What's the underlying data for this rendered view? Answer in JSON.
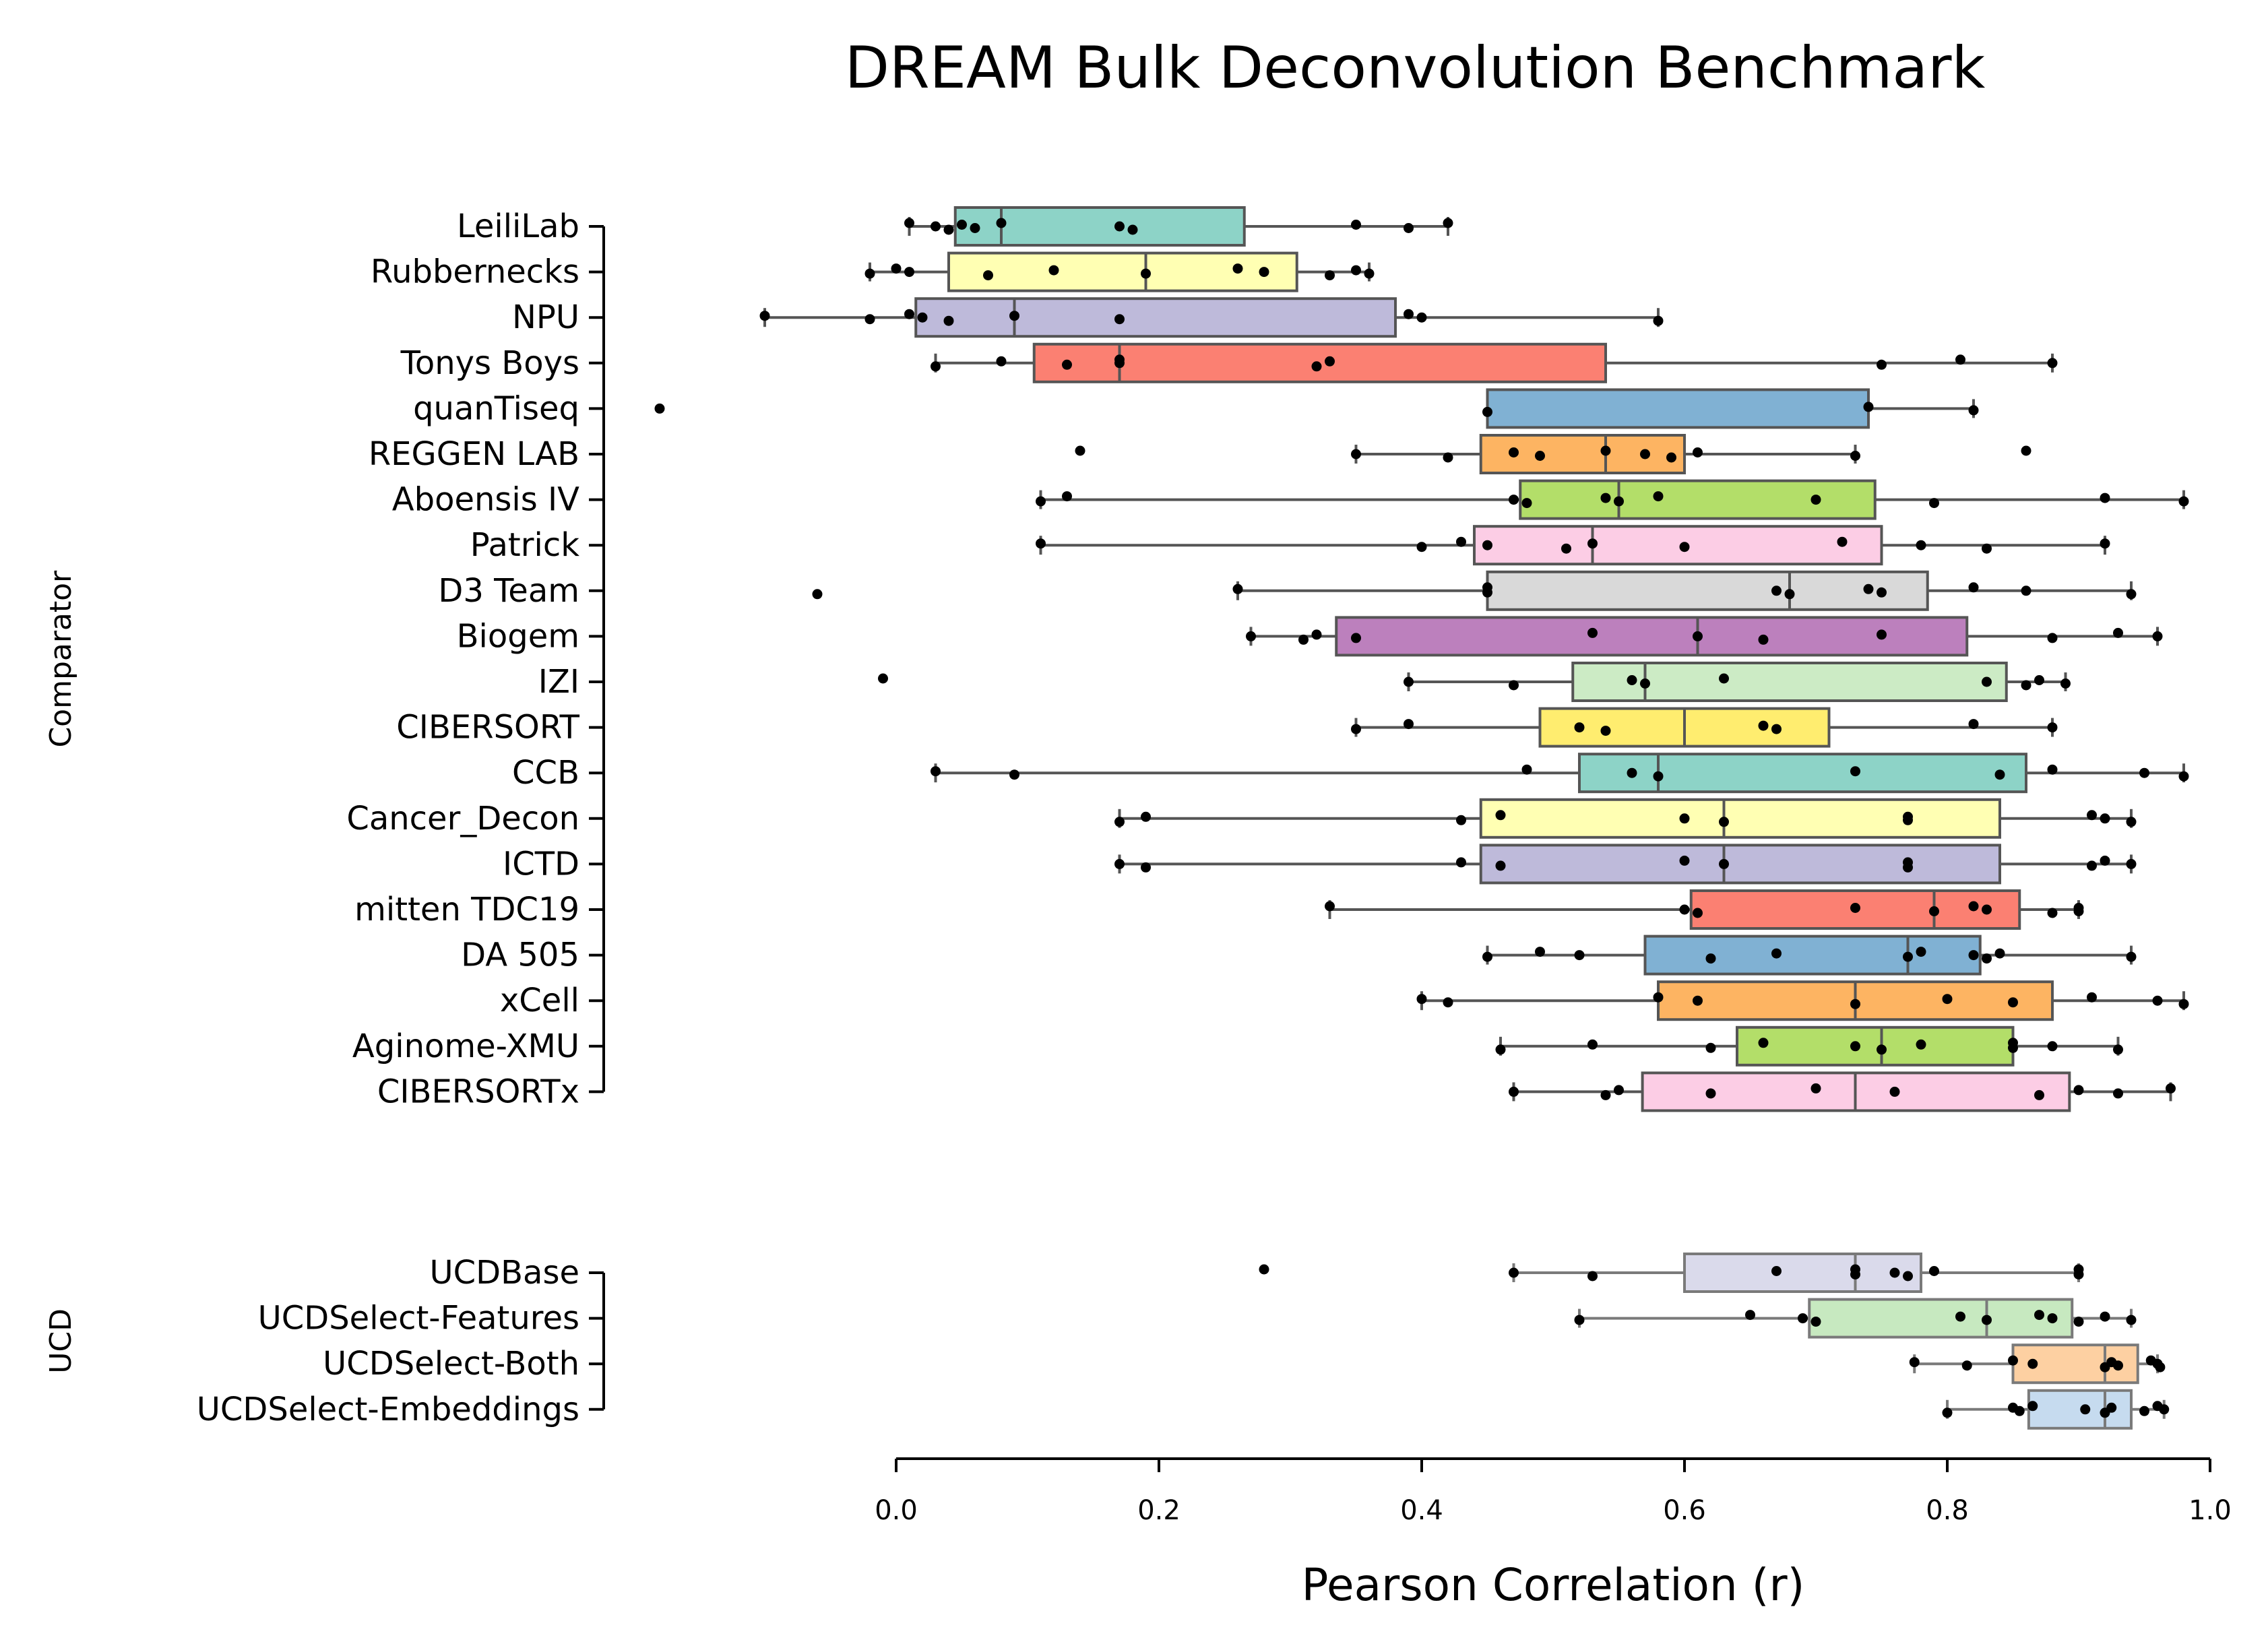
{
  "chart_data": {
    "type": "box",
    "title": "DREAM Bulk Deconvolution Benchmark",
    "xlabel": "Pearson Correlation (r)",
    "xlim": [
      0.0,
      1.0
    ],
    "xticks": [
      "0.0",
      "0.2",
      "0.4",
      "0.6",
      "0.8",
      "1.0"
    ],
    "grid": false,
    "groups": [
      {
        "name": "Comparator",
        "methods": [
          {
            "name": "LeiliLab",
            "color": "#8dd3c7",
            "q1": 0.045,
            "median": 0.08,
            "q3": 0.265,
            "whisker_low": 0.01,
            "whisker_high": 0.42,
            "points": [
              0.01,
              0.03,
              0.04,
              0.05,
              0.06,
              0.08,
              0.17,
              0.18,
              0.35,
              0.39,
              0.42
            ]
          },
          {
            "name": "Rubbernecks",
            "color": "#ffffb3",
            "q1": 0.04,
            "median": 0.19,
            "q3": 0.305,
            "whisker_low": -0.02,
            "whisker_high": 0.36,
            "points": [
              -0.02,
              0.0,
              0.01,
              0.07,
              0.12,
              0.19,
              0.26,
              0.28,
              0.33,
              0.35,
              0.36
            ]
          },
          {
            "name": "NPU",
            "color": "#bebada",
            "q1": 0.015,
            "median": 0.09,
            "q3": 0.38,
            "whisker_low": -0.1,
            "whisker_high": 0.58,
            "points": [
              -0.1,
              -0.02,
              0.01,
              0.02,
              0.04,
              0.09,
              0.17,
              0.39,
              0.4,
              0.58
            ]
          },
          {
            "name": "Tonys Boys",
            "color": "#fb8072",
            "q1": 0.105,
            "median": 0.17,
            "q3": 0.54,
            "whisker_low": 0.03,
            "whisker_high": 0.88,
            "points": [
              0.03,
              0.08,
              0.13,
              0.17,
              0.17,
              0.32,
              0.33,
              0.75,
              0.81,
              0.88
            ]
          },
          {
            "name": "quanTiseq",
            "color": "#80b1d3",
            "q1": 0.45,
            "median": 0.74,
            "q3": 0.74,
            "whisker_low": 0.45,
            "whisker_high": 0.82,
            "points": [
              -0.18,
              0.45,
              0.74,
              0.82
            ]
          },
          {
            "name": "REGGEN LAB",
            "color": "#fdb462",
            "q1": 0.445,
            "median": 0.54,
            "q3": 0.6,
            "whisker_low": 0.35,
            "whisker_high": 0.73,
            "points": [
              0.14,
              0.35,
              0.42,
              0.47,
              0.49,
              0.54,
              0.57,
              0.59,
              0.61,
              0.73,
              0.86
            ]
          },
          {
            "name": "Aboensis IV",
            "color": "#b3de69",
            "q1": 0.475,
            "median": 0.55,
            "q3": 0.745,
            "whisker_low": 0.11,
            "whisker_high": 0.98,
            "points": [
              0.11,
              0.13,
              0.47,
              0.48,
              0.54,
              0.55,
              0.58,
              0.7,
              0.79,
              0.92,
              0.98
            ]
          },
          {
            "name": "Patrick",
            "color": "#fccde5",
            "q1": 0.44,
            "median": 0.53,
            "q3": 0.75,
            "whisker_low": 0.11,
            "whisker_high": 0.92,
            "points": [
              0.11,
              0.4,
              0.43,
              0.45,
              0.51,
              0.53,
              0.6,
              0.72,
              0.78,
              0.83,
              0.92
            ]
          },
          {
            "name": "D3 Team",
            "color": "#d9d9d9",
            "q1": 0.45,
            "median": 0.68,
            "q3": 0.785,
            "whisker_low": 0.26,
            "whisker_high": 0.94,
            "points": [
              -0.06,
              0.26,
              0.45,
              0.45,
              0.67,
              0.68,
              0.74,
              0.75,
              0.82,
              0.86,
              0.94
            ]
          },
          {
            "name": "Biogem",
            "color": "#bc80bd",
            "q1": 0.335,
            "median": 0.61,
            "q3": 0.815,
            "whisker_low": 0.27,
            "whisker_high": 0.96,
            "points": [
              0.27,
              0.31,
              0.32,
              0.35,
              0.53,
              0.61,
              0.66,
              0.75,
              0.88,
              0.93,
              0.96
            ]
          },
          {
            "name": "IZI",
            "color": "#ccebc5",
            "q1": 0.515,
            "median": 0.57,
            "q3": 0.845,
            "whisker_low": 0.39,
            "whisker_high": 0.89,
            "points": [
              -0.01,
              0.39,
              0.47,
              0.56,
              0.57,
              0.63,
              0.83,
              0.86,
              0.87,
              0.89
            ]
          },
          {
            "name": "CIBERSORT",
            "color": "#ffed6f",
            "q1": 0.49,
            "median": 0.6,
            "q3": 0.71,
            "whisker_low": 0.35,
            "whisker_high": 0.88,
            "points": [
              0.35,
              0.39,
              0.52,
              0.54,
              0.66,
              0.67,
              0.82,
              0.88
            ]
          },
          {
            "name": "CCB",
            "color": "#8dd3c7",
            "q1": 0.52,
            "median": 0.58,
            "q3": 0.86,
            "whisker_low": 0.03,
            "whisker_high": 0.98,
            "points": [
              0.03,
              0.09,
              0.48,
              0.56,
              0.58,
              0.73,
              0.84,
              0.88,
              0.95,
              0.98
            ]
          },
          {
            "name": "Cancer_Decon",
            "color": "#ffffb3",
            "q1": 0.445,
            "median": 0.63,
            "q3": 0.84,
            "whisker_low": 0.17,
            "whisker_high": 0.94,
            "points": [
              0.17,
              0.19,
              0.43,
              0.46,
              0.6,
              0.63,
              0.77,
              0.77,
              0.91,
              0.92,
              0.94
            ]
          },
          {
            "name": "ICTD",
            "color": "#bebada",
            "q1": 0.445,
            "median": 0.63,
            "q3": 0.84,
            "whisker_low": 0.17,
            "whisker_high": 0.94,
            "points": [
              0.17,
              0.19,
              0.43,
              0.46,
              0.6,
              0.63,
              0.77,
              0.77,
              0.91,
              0.92,
              0.94
            ]
          },
          {
            "name": "mitten TDC19",
            "color": "#fb8072",
            "q1": 0.605,
            "median": 0.79,
            "q3": 0.855,
            "whisker_low": 0.33,
            "whisker_high": 0.9,
            "points": [
              0.33,
              0.6,
              0.61,
              0.73,
              0.79,
              0.82,
              0.83,
              0.88,
              0.9,
              0.9
            ]
          },
          {
            "name": "DA 505",
            "color": "#80b1d3",
            "q1": 0.57,
            "median": 0.77,
            "q3": 0.825,
            "whisker_low": 0.45,
            "whisker_high": 0.94,
            "points": [
              0.45,
              0.49,
              0.52,
              0.62,
              0.67,
              0.77,
              0.78,
              0.82,
              0.83,
              0.84,
              0.94
            ]
          },
          {
            "name": "xCell",
            "color": "#fdb462",
            "q1": 0.58,
            "median": 0.73,
            "q3": 0.88,
            "whisker_low": 0.4,
            "whisker_high": 0.98,
            "points": [
              0.4,
              0.42,
              0.58,
              0.61,
              0.73,
              0.8,
              0.85,
              0.91,
              0.96,
              0.98
            ]
          },
          {
            "name": "Aginome-XMU",
            "color": "#b3de69",
            "q1": 0.64,
            "median": 0.75,
            "q3": 0.85,
            "whisker_low": 0.46,
            "whisker_high": 0.93,
            "points": [
              0.46,
              0.53,
              0.62,
              0.66,
              0.73,
              0.75,
              0.78,
              0.85,
              0.85,
              0.88,
              0.93
            ]
          },
          {
            "name": "CIBERSORTx",
            "color": "#fccde5",
            "q1": 0.568,
            "median": 0.73,
            "q3": 0.893,
            "whisker_low": 0.47,
            "whisker_high": 0.97,
            "points": [
              0.47,
              0.54,
              0.55,
              0.62,
              0.7,
              0.76,
              0.87,
              0.9,
              0.93,
              0.97
            ]
          }
        ]
      },
      {
        "name": "UCD",
        "methods": [
          {
            "name": "UCDBase",
            "color": "#dadaeb",
            "q1": 0.6,
            "median": 0.73,
            "q3": 0.78,
            "whisker_low": 0.47,
            "whisker_high": 0.9,
            "points": [
              0.28,
              0.47,
              0.53,
              0.67,
              0.73,
              0.73,
              0.76,
              0.77,
              0.79,
              0.9,
              0.9
            ]
          },
          {
            "name": "UCDSelect-Features",
            "color": "#c7e9c0",
            "q1": 0.695,
            "median": 0.83,
            "q3": 0.895,
            "whisker_low": 0.52,
            "whisker_high": 0.94,
            "points": [
              0.52,
              0.65,
              0.69,
              0.7,
              0.81,
              0.83,
              0.87,
              0.88,
              0.9,
              0.92,
              0.94
            ]
          },
          {
            "name": "UCDSelect-Both",
            "color": "#fdd0a2",
            "q1": 0.85,
            "median": 0.92,
            "q3": 0.945,
            "whisker_low": 0.775,
            "whisker_high": 0.96,
            "points": [
              0.775,
              0.815,
              0.85,
              0.865,
              0.92,
              0.925,
              0.93,
              0.955,
              0.96,
              0.962
            ]
          },
          {
            "name": "UCDSelect-Embeddings",
            "color": "#c6dbef",
            "q1": 0.862,
            "median": 0.92,
            "q3": 0.94,
            "whisker_low": 0.8,
            "whisker_high": 0.965,
            "points": [
              0.8,
              0.85,
              0.855,
              0.865,
              0.905,
              0.92,
              0.925,
              0.95,
              0.96,
              0.965
            ]
          }
        ]
      }
    ]
  }
}
